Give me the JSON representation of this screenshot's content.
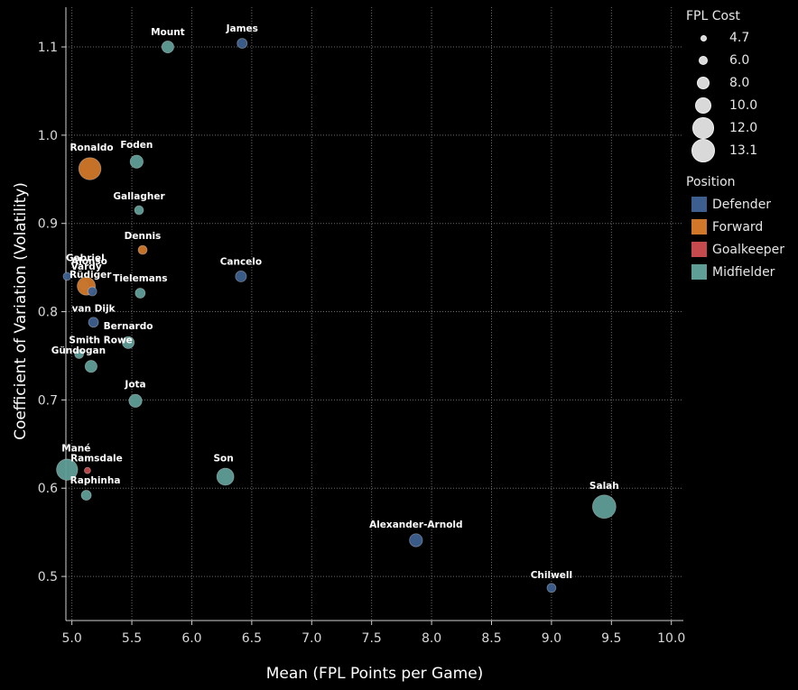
{
  "chart_data": {
    "type": "scatter",
    "xlabel": "Mean (FPL Points per Game)",
    "ylabel": "Coefficient of Variation (Volatility)",
    "xlim": [
      4.95,
      10.1
    ],
    "ylim": [
      0.45,
      1.145
    ],
    "x_ticks": [
      "5.0",
      "5.5",
      "6.0",
      "6.5",
      "7.0",
      "7.5",
      "8.0",
      "8.5",
      "9.0",
      "9.5",
      "10.0"
    ],
    "x_tick_values": [
      5.0,
      5.5,
      6.0,
      6.5,
      7.0,
      7.5,
      8.0,
      8.5,
      9.0,
      9.5,
      10.0
    ],
    "y_ticks": [
      "0.5",
      "0.6",
      "0.7",
      "0.8",
      "0.9",
      "1.0",
      "1.1"
    ],
    "y_tick_values": [
      0.5,
      0.6,
      0.7,
      0.8,
      0.9,
      1.0,
      1.1
    ],
    "grid": true,
    "legend_placement": "right",
    "size_legend": {
      "title": "FPL Cost",
      "values": [
        "4.7",
        "6.0",
        "8.0",
        "10.0",
        "12.0",
        "13.1"
      ]
    },
    "color_legend": {
      "title": "Position",
      "entries": [
        {
          "name": "Defender",
          "color": "#4e79a7"
        },
        {
          "name": "Forward",
          "color": "#f28e2b"
        },
        {
          "name": "Goalkeeper",
          "color": "#e15759"
        },
        {
          "name": "Midfielder",
          "color": "#76b7b2"
        }
      ]
    },
    "colors": {
      "Defender": "#3d5f8f",
      "Forward": "#d0772a",
      "Goalkeeper": "#c44a4e",
      "Midfielder": "#5f9d97"
    },
    "points": [
      {
        "name": "Mount",
        "x": 5.8,
        "y": 1.1,
        "cost": 7.5,
        "position": "Midfielder"
      },
      {
        "name": "James",
        "x": 6.42,
        "y": 1.104,
        "cost": 6.5,
        "position": "Defender"
      },
      {
        "name": "Ronaldo",
        "x": 5.15,
        "y": 0.962,
        "cost": 12.5,
        "position": "Forward"
      },
      {
        "name": "Foden",
        "x": 5.54,
        "y": 0.97,
        "cost": 8.0,
        "position": "Midfielder"
      },
      {
        "name": "Gallagher",
        "x": 5.56,
        "y": 0.915,
        "cost": 6.0,
        "position": "Midfielder"
      },
      {
        "name": "Dennis",
        "x": 5.59,
        "y": 0.87,
        "cost": 6.0,
        "position": "Forward"
      },
      {
        "name": "Cancelo",
        "x": 6.41,
        "y": 0.84,
        "cost": 7.0,
        "position": "Defender"
      },
      {
        "name": "Gabriel",
        "x": 4.96,
        "y": 0.84,
        "cost": 5.5,
        "position": "Defender"
      },
      {
        "name": "Alonso",
        "x": 5.1,
        "y": 0.83,
        "cost": 6.0,
        "position": "Defender"
      },
      {
        "name": "Vardy",
        "x": 5.12,
        "y": 0.829,
        "cost": 10.5,
        "position": "Forward"
      },
      {
        "name": "Rüdiger",
        "x": 5.17,
        "y": 0.823,
        "cost": 6.0,
        "position": "Defender"
      },
      {
        "name": "Tielemans",
        "x": 5.57,
        "y": 0.821,
        "cost": 6.5,
        "position": "Midfielder"
      },
      {
        "name": "van Dijk",
        "x": 5.18,
        "y": 0.788,
        "cost": 6.5,
        "position": "Defender"
      },
      {
        "name": "Bernardo",
        "x": 5.47,
        "y": 0.765,
        "cost": 7.5,
        "position": "Midfielder"
      },
      {
        "name": "Smith Rowe",
        "x": 5.06,
        "y": 0.752,
        "cost": 6.0,
        "position": "Midfielder"
      },
      {
        "name": "Gündogan",
        "x": 5.16,
        "y": 0.738,
        "cost": 7.5,
        "position": "Midfielder"
      },
      {
        "name": "Jota",
        "x": 5.53,
        "y": 0.699,
        "cost": 8.0,
        "position": "Midfielder"
      },
      {
        "name": "Mané",
        "x": 4.96,
        "y": 0.621,
        "cost": 12.0,
        "position": "Midfielder"
      },
      {
        "name": "Ramsdale",
        "x": 5.13,
        "y": 0.62,
        "cost": 4.7,
        "position": "Goalkeeper"
      },
      {
        "name": "Son",
        "x": 6.28,
        "y": 0.613,
        "cost": 10.0,
        "position": "Midfielder"
      },
      {
        "name": "Raphinha",
        "x": 5.12,
        "y": 0.592,
        "cost": 6.5,
        "position": "Midfielder"
      },
      {
        "name": "Salah",
        "x": 9.44,
        "y": 0.579,
        "cost": 13.1,
        "position": "Midfielder"
      },
      {
        "name": "Alexander-Arnold",
        "x": 7.87,
        "y": 0.541,
        "cost": 8.0,
        "position": "Defender"
      },
      {
        "name": "Chilwell",
        "x": 9.0,
        "y": 0.487,
        "cost": 6.0,
        "position": "Defender"
      }
    ]
  }
}
